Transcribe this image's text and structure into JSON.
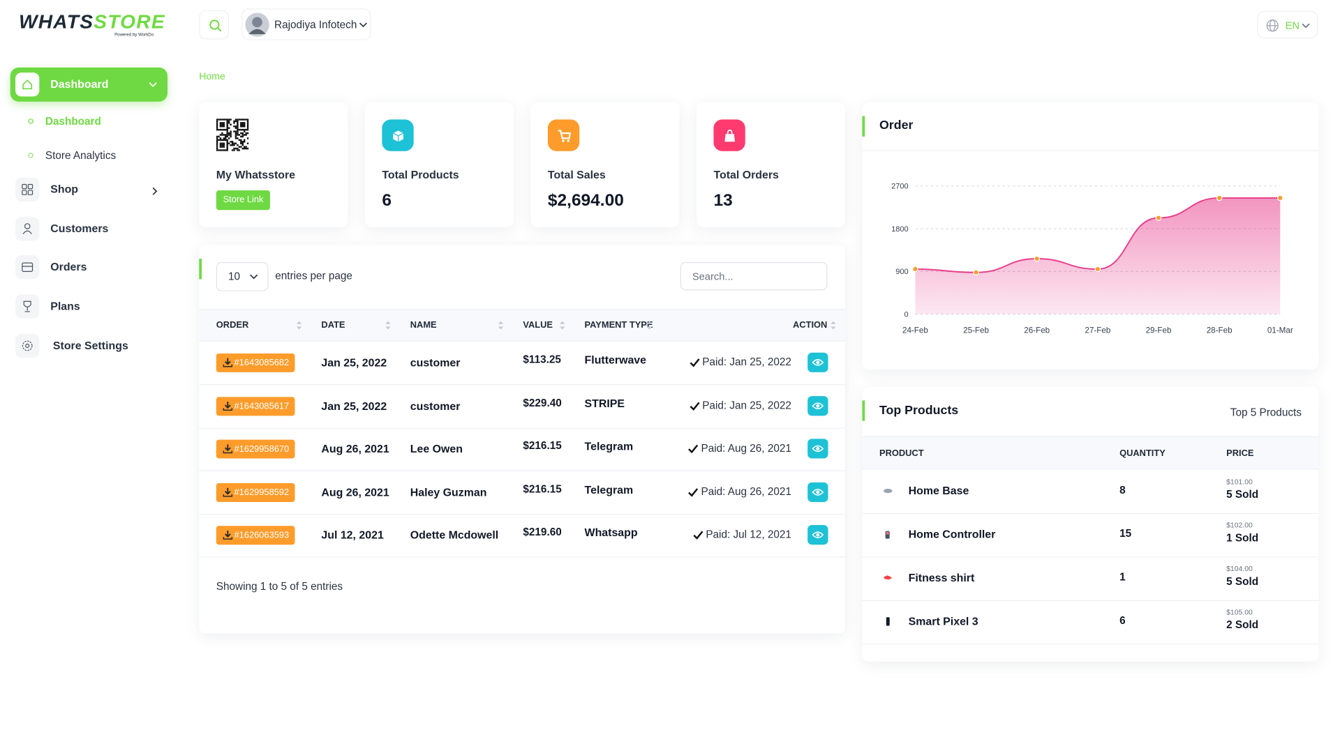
{
  "brand": {
    "name_part1": "WHATS",
    "name_part2": "STORE",
    "tagline": "Powered by WorkDo"
  },
  "header": {
    "user": "Rajodiya Infotech",
    "language": "EN"
  },
  "sidebar": {
    "items": [
      {
        "label": "Dashboard",
        "active": true,
        "children": [
          {
            "label": "Dashboard",
            "active": true
          },
          {
            "label": "Store Analytics",
            "active": false
          }
        ]
      },
      {
        "label": "Shop",
        "active": false
      },
      {
        "label": "Customers",
        "active": false
      },
      {
        "label": "Orders",
        "active": false
      },
      {
        "label": "Plans",
        "active": false
      },
      {
        "label": "Store Settings",
        "active": false
      }
    ]
  },
  "breadcrumb": "Home",
  "stats": [
    {
      "label": "My Whatsstore",
      "button": "Store Link"
    },
    {
      "label": "Total Products",
      "value": 6,
      "color": "#1ec2d6"
    },
    {
      "label": "Total Sales",
      "value": "$2,694.00",
      "color": "#fd9c2b"
    },
    {
      "label": "Total Orders",
      "value": 13,
      "color": "#ff3a6e"
    }
  ],
  "orders_table": {
    "entries_per_page": 10,
    "entries_label": "entries per page",
    "search_placeholder": "Search...",
    "columns": [
      "ORDER",
      "DATE",
      "NAME",
      "VALUE",
      "PAYMENT TYPE",
      "ACTION"
    ],
    "rows": [
      {
        "order": "#1643085682",
        "date": "Jan 25, 2022",
        "name": "customer",
        "value": "$113.25",
        "payment_type": "Flutterwave",
        "status": "Paid: Jan 25, 2022"
      },
      {
        "order": "#1643085617",
        "date": "Jan 25, 2022",
        "name": "customer",
        "value": "$229.40",
        "payment_type": "STRIPE",
        "status": "Paid: Jan 25, 2022"
      },
      {
        "order": "#1629958670",
        "date": "Aug 26, 2021",
        "name": "Lee Owen",
        "value": "$216.15",
        "payment_type": "Telegram",
        "status": "Paid: Aug 26, 2021"
      },
      {
        "order": "#1629958592",
        "date": "Aug 26, 2021",
        "name": "Haley Guzman",
        "value": "$216.15",
        "payment_type": "Telegram",
        "status": "Paid: Aug 26, 2021"
      },
      {
        "order": "#1626063593",
        "date": "Jul 12, 2021",
        "name": "Odette Mcdowell",
        "value": "$219.60",
        "payment_type": "Whatsapp",
        "status": "Paid: Jul 12, 2021"
      }
    ],
    "footer": "Showing 1 to 5 of 5 entries"
  },
  "chart_data": {
    "type": "line",
    "title": "Order",
    "categories": [
      "24-Feb",
      "25-Feb",
      "26-Feb",
      "27-Feb",
      "29-Feb",
      "28-Feb",
      "01-Mar"
    ],
    "values": [
      950,
      880,
      1170,
      950,
      2030,
      2450,
      2450
    ],
    "color": "#e83e8c",
    "point_color": "#fd9c2b",
    "ylim": [
      0,
      2700
    ],
    "yticks": [
      0,
      900,
      1800,
      2700
    ],
    "grid": true
  },
  "top_products": {
    "title": "Top Products",
    "subtitle": "Top 5 Products",
    "columns": [
      "PRODUCT",
      "QUANTITY",
      "PRICE"
    ],
    "rows": [
      {
        "name": "Home Base",
        "quantity": 8,
        "price": "$101.00",
        "sold": "5 Sold"
      },
      {
        "name": "Home Controller",
        "quantity": 15,
        "price": "$102.00",
        "sold": "1 Sold"
      },
      {
        "name": "Fitness shirt",
        "quantity": 1,
        "price": "$104.00",
        "sold": "5 Sold"
      },
      {
        "name": "Smart Pixel 3",
        "quantity": 6,
        "price": "$105.00",
        "sold": "2 Sold"
      }
    ]
  }
}
